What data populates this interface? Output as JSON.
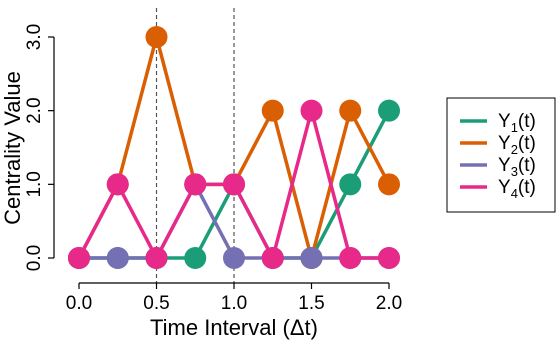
{
  "chart_data": {
    "type": "line",
    "title": "",
    "xlabel": "Time Interval (Δt)",
    "ylabel": "Centrality Value",
    "xlim": [
      0.0,
      2.0
    ],
    "ylim": [
      0.0,
      3.0
    ],
    "x": [
      0.0,
      0.25,
      0.5,
      0.75,
      1.0,
      1.25,
      1.5,
      1.75,
      2.0
    ],
    "xticks": [
      "0.0",
      "0.5",
      "1.0",
      "1.5",
      "2.0"
    ],
    "yticks": [
      "0.0",
      "1.0",
      "2.0",
      "3.0"
    ],
    "reference_lines_x": [
      0.5,
      1.0
    ],
    "grid": false,
    "legend_position": "right",
    "series": [
      {
        "name": "Y1(t)",
        "label_main": "Y",
        "label_sub": "1",
        "label_tail": "(t)",
        "color": "#1b9e77",
        "values": [
          0,
          0,
          0,
          0,
          1,
          0,
          0,
          1,
          2
        ]
      },
      {
        "name": "Y2(t)",
        "label_main": "Y",
        "label_sub": "2",
        "label_tail": "(t)",
        "color": "#d95f02",
        "values": [
          0,
          1,
          3,
          1,
          1,
          2,
          0,
          2,
          1
        ]
      },
      {
        "name": "Y3(t)",
        "label_main": "Y",
        "label_sub": "3",
        "label_tail": "(t)",
        "color": "#7570b3",
        "values": [
          0,
          0,
          0,
          1,
          0,
          0,
          0,
          0,
          0
        ]
      },
      {
        "name": "Y4(t)",
        "label_main": "Y",
        "label_sub": "4",
        "label_tail": "(t)",
        "color": "#e7298a",
        "values": [
          0,
          1,
          0,
          1,
          1,
          0,
          2,
          0,
          0
        ]
      }
    ]
  }
}
